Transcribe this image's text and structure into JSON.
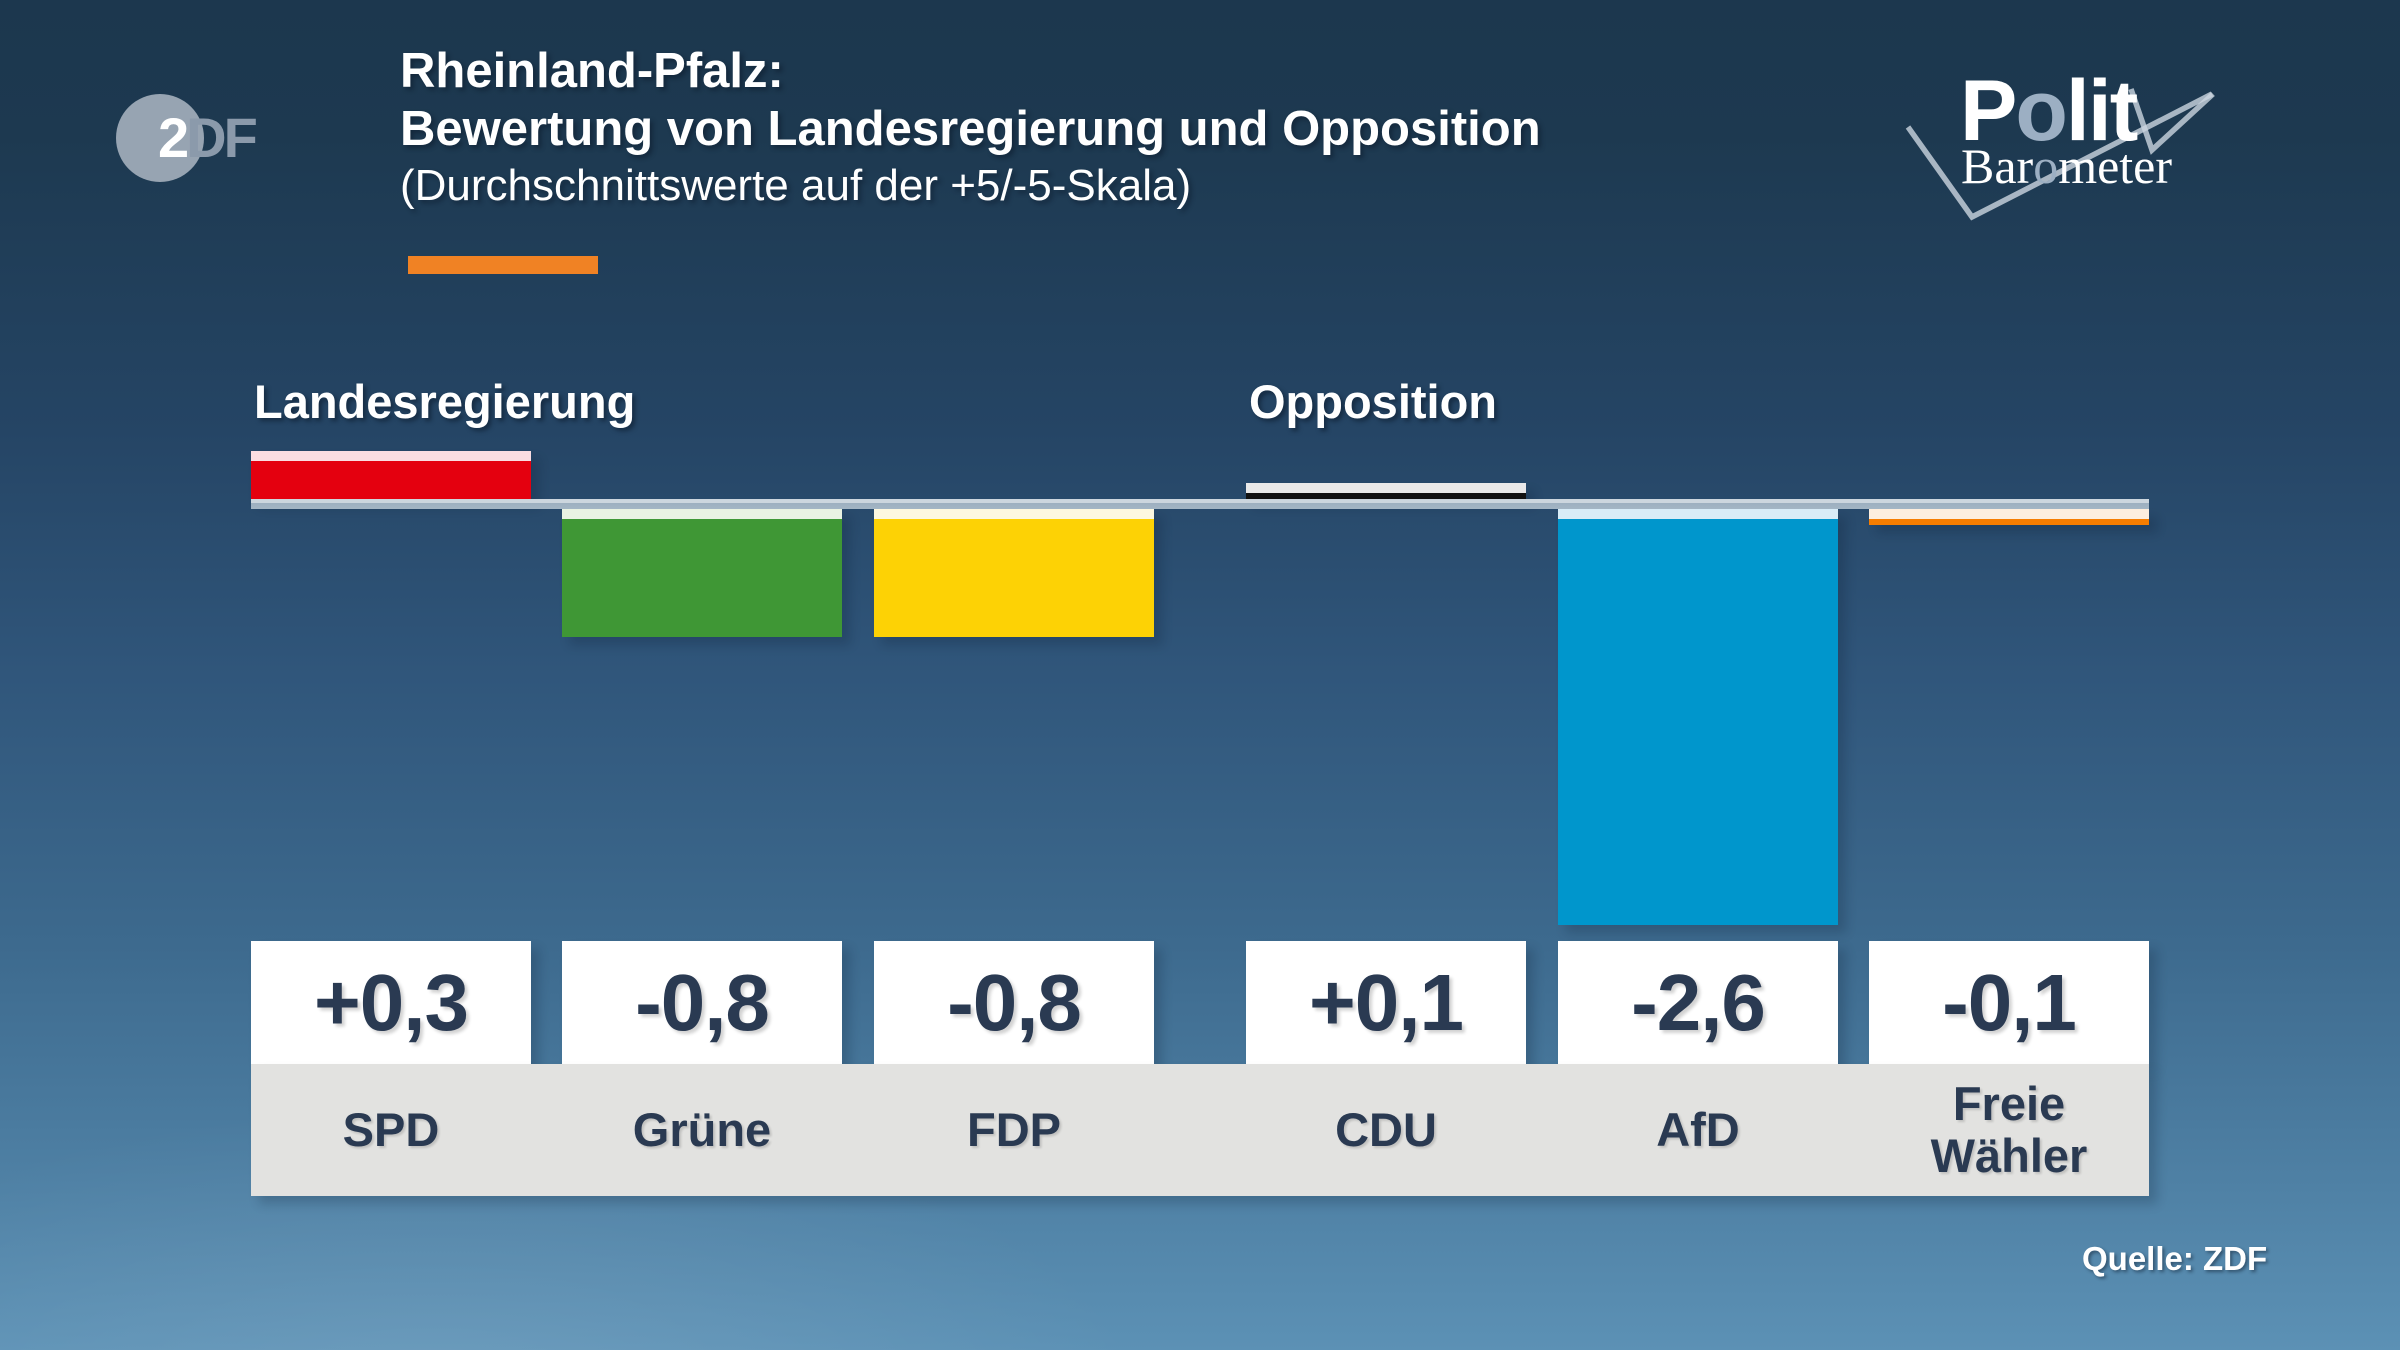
{
  "branding": {
    "zdf_logo": {
      "digit": "2",
      "letters": "DF"
    },
    "politbarometer": {
      "p_start": "P",
      "p_o": "o",
      "p_end": "lit",
      "b_start": "Bar",
      "b_o": "o",
      "b_end": "meter"
    }
  },
  "header": {
    "title_line1": "Rheinland-Pfalz:",
    "title_line2": "Bewertung von Landesregierung und Opposition",
    "subtitle": "(Durchschnittswerte auf der +5/-5-Skala)",
    "accent_color": "#f08224"
  },
  "chart_data": {
    "type": "bar",
    "title": "Rheinland-Pfalz: Bewertung von Landesregierung und Opposition",
    "subtitle": "(Durchschnittswerte auf der +5/-5-Skala)",
    "ylim": [
      -5,
      5
    ],
    "grid": false,
    "groups": [
      {
        "label": "Landesregierung",
        "category_indexes": [
          0,
          1,
          2
        ]
      },
      {
        "label": "Opposition",
        "category_indexes": [
          3,
          4,
          5
        ]
      }
    ],
    "categories": [
      "SPD",
      "Grüne",
      "FDP",
      "CDU",
      "AfD",
      "Freie Wähler"
    ],
    "values": [
      0.3,
      -0.8,
      -0.8,
      0.1,
      -2.6,
      -0.1
    ],
    "value_labels": [
      "+0,3",
      "-0,8",
      "-0,8",
      "+0,1",
      "-2,6",
      "-0,1"
    ],
    "bar_colors": [
      "#e4000f",
      "#3f9735",
      "#fdd205",
      "#121212",
      "#0096cc",
      "#f67d00"
    ],
    "cap_colors": [
      "#fadde2",
      "#e9f2e2",
      "#fdf8e0",
      "#e9e9e9",
      "#d8ecf7",
      "#fdeede"
    ],
    "baseline_color": "#a3b5c4",
    "value_text_color": "#2a3a52",
    "label_band_color": "#e2e2e0"
  },
  "footer": {
    "source": "Quelle: ZDF"
  }
}
